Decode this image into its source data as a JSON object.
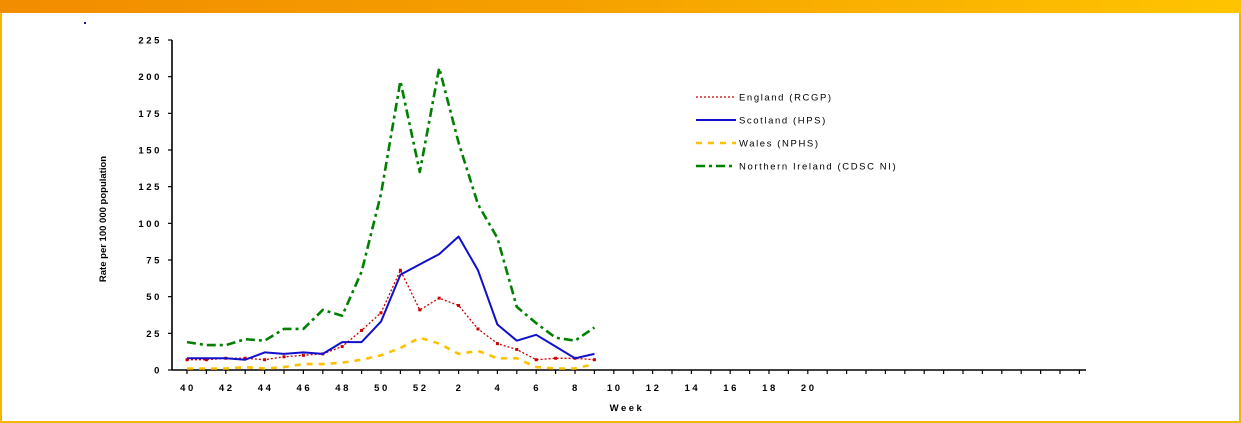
{
  "chart_data": {
    "type": "line",
    "title": "",
    "xlabel": "Week",
    "ylabel": "Rate per 100 000 population",
    "ylim": [
      0,
      225
    ],
    "yticks": [
      "0",
      "25",
      "50",
      "75",
      "100",
      "125",
      "150",
      "175",
      "200",
      "225"
    ],
    "xticks": [
      "40",
      "42",
      "44",
      "46",
      "48",
      "50",
      "52",
      "2",
      "4",
      "6",
      "8",
      "10",
      "12",
      "14",
      "16",
      "18",
      "20"
    ],
    "x": [
      "40",
      "41",
      "42",
      "43",
      "44",
      "45",
      "46",
      "47",
      "48",
      "49",
      "50",
      "51",
      "52",
      "1",
      "2",
      "3",
      "4",
      "5",
      "6",
      "7",
      "8",
      "9"
    ],
    "legend_position": "top-right",
    "grid": false,
    "series": [
      {
        "name": "England (RCGP)",
        "color": "#cc0000",
        "style": "dotted",
        "values": [
          7,
          7,
          8,
          8,
          7,
          9,
          10,
          11,
          16,
          27,
          39,
          68,
          41,
          49,
          44,
          28,
          18,
          14,
          7,
          8,
          8,
          7
        ]
      },
      {
        "name": "Scotland (HPS)",
        "color": "#1010cc",
        "style": "solid",
        "values": [
          8,
          8,
          8,
          7,
          12,
          11,
          12,
          11,
          19,
          19,
          33,
          65,
          72,
          79,
          91,
          68,
          31,
          20,
          24,
          16,
          8,
          11
        ]
      },
      {
        "name": "Wales (NPHS)",
        "color": "#ffc000",
        "style": "dashed",
        "values": [
          1,
          1,
          1,
          2,
          1,
          2,
          4,
          4,
          5,
          7,
          10,
          15,
          22,
          18,
          11,
          13,
          8,
          8,
          2,
          1,
          1,
          4
        ]
      },
      {
        "name": "Northern Ireland (CDSC NI)",
        "color": "#008000",
        "style": "dashdot",
        "values": [
          19,
          17,
          17,
          21,
          20,
          28,
          28,
          41,
          37,
          67,
          120,
          197,
          135,
          206,
          155,
          113,
          90,
          43,
          32,
          22,
          20,
          29
        ]
      }
    ]
  }
}
